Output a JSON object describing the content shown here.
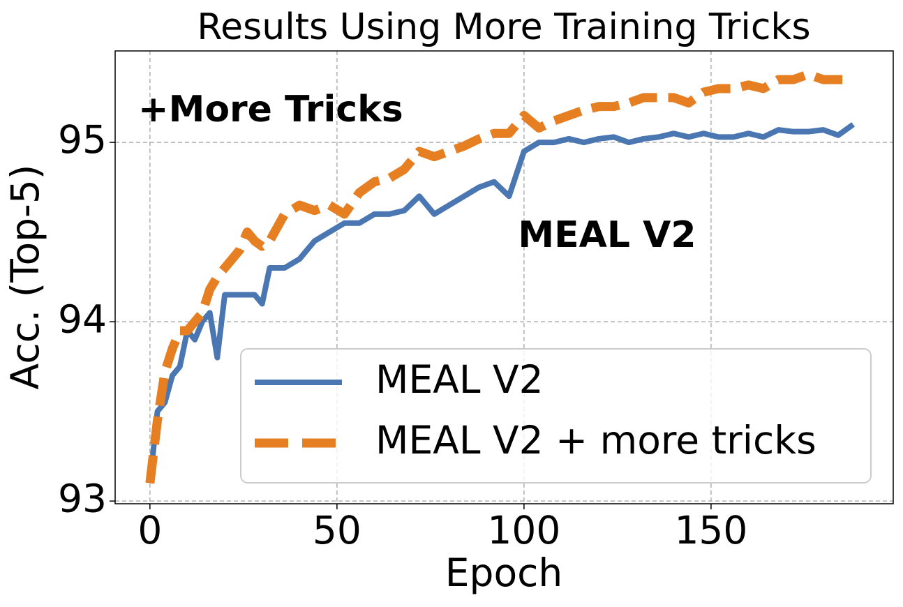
{
  "chart_data": {
    "type": "line",
    "title": "Results Using More Training Tricks",
    "x_label": "Epoch",
    "y_label": "Acc. (Top-5)",
    "annotations": [
      "+More Tricks",
      "MEAL V2"
    ],
    "x": [
      0,
      2,
      4,
      6,
      8,
      10,
      12,
      14,
      16,
      18,
      20,
      24,
      26,
      28,
      30,
      32,
      36,
      40,
      44,
      48,
      52,
      56,
      60,
      64,
      68,
      72,
      76,
      80,
      84,
      88,
      92,
      96,
      100,
      104,
      108,
      112,
      116,
      120,
      124,
      128,
      132,
      136,
      140,
      144,
      148,
      152,
      156,
      160,
      164,
      168,
      172,
      176,
      180,
      184,
      188
    ],
    "series": [
      {
        "name": "MEAL V2",
        "color": "#4a76b2",
        "dash": "solid",
        "values": [
          93.1,
          93.5,
          93.55,
          93.7,
          93.75,
          93.95,
          93.9,
          94.0,
          94.05,
          93.8,
          94.15,
          94.15,
          94.15,
          94.15,
          94.1,
          94.3,
          94.3,
          94.35,
          94.45,
          94.5,
          94.55,
          94.55,
          94.6,
          94.6,
          94.62,
          94.7,
          94.6,
          94.65,
          94.7,
          94.75,
          94.78,
          94.7,
          94.95,
          95.0,
          95.0,
          95.02,
          95.0,
          95.02,
          95.03,
          95.0,
          95.02,
          95.03,
          95.05,
          95.03,
          95.05,
          95.03,
          95.03,
          95.05,
          95.03,
          95.07,
          95.06,
          95.06,
          95.07,
          95.04,
          95.1
        ]
      },
      {
        "name": "MEAL V2 + more tricks",
        "color": "#e67e22",
        "dash": "dashed",
        "values": [
          93.1,
          93.45,
          93.72,
          93.85,
          93.95,
          93.95,
          94.0,
          94.05,
          94.18,
          94.25,
          94.3,
          94.4,
          94.5,
          94.45,
          94.42,
          94.45,
          94.6,
          94.65,
          94.62,
          94.65,
          94.6,
          94.72,
          94.78,
          94.8,
          94.85,
          94.95,
          94.92,
          94.95,
          94.98,
          95.02,
          95.05,
          95.05,
          95.15,
          95.08,
          95.12,
          95.15,
          95.18,
          95.2,
          95.2,
          95.22,
          95.25,
          95.25,
          95.25,
          95.22,
          95.28,
          95.3,
          95.3,
          95.32,
          95.3,
          95.35,
          95.35,
          95.38,
          95.35,
          95.35,
          95.35
        ]
      }
    ],
    "xlim": [
      -9.3,
      198.7
    ],
    "ylim": [
      92.985,
      95.51
    ],
    "xticks": [
      0,
      50,
      100,
      150
    ],
    "yticks": [
      93,
      94,
      95
    ],
    "grid": true,
    "legend": "lower right"
  }
}
